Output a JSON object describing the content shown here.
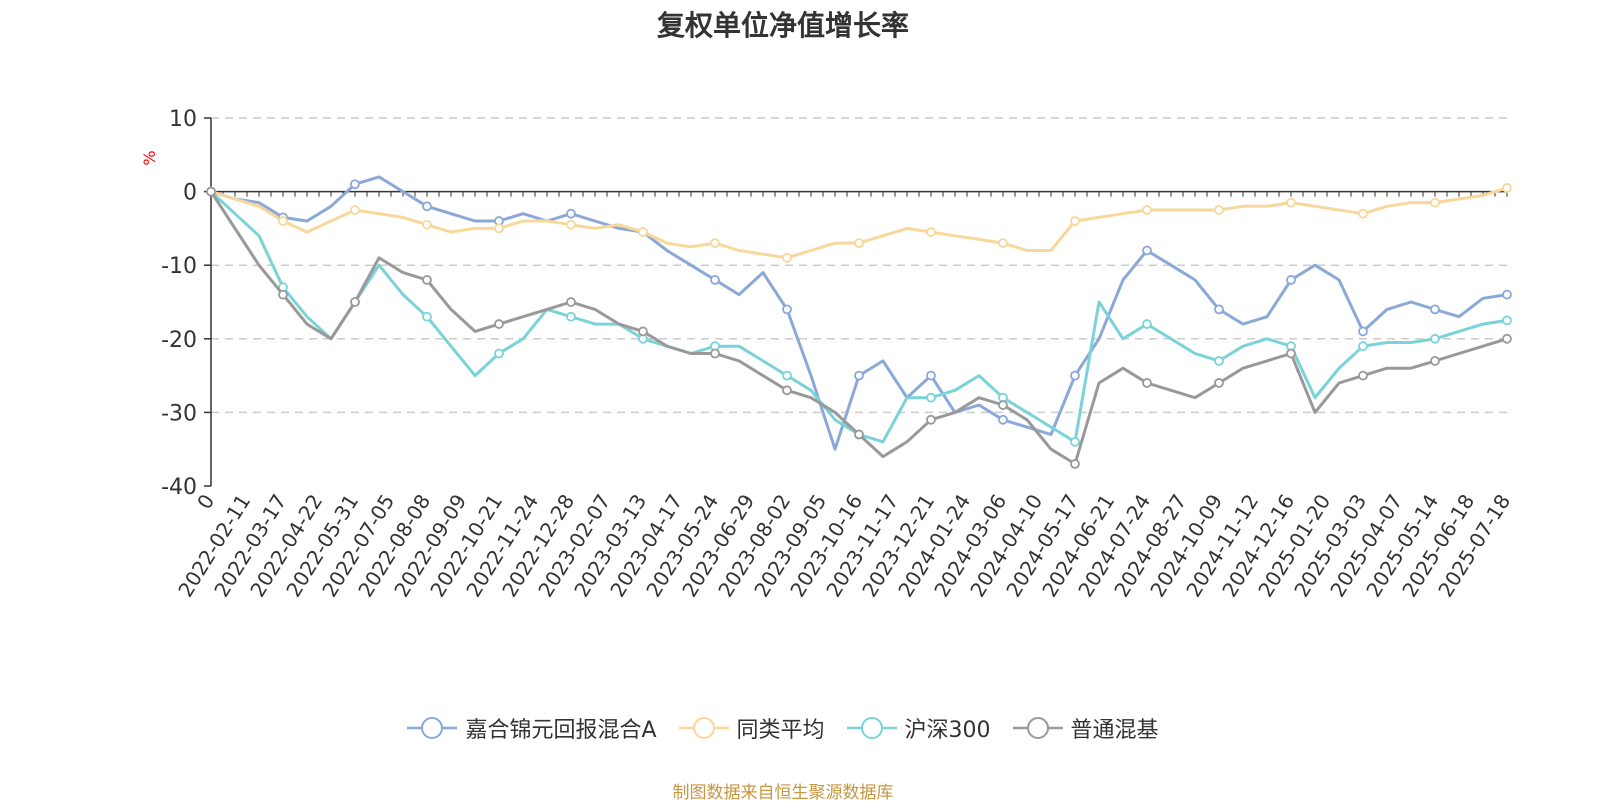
{
  "source_note": "制图数据来自恒生聚源数据库",
  "chart_data": {
    "type": "line",
    "title": "复权单位净值增长率",
    "ylabel": "%",
    "xlabel": "",
    "ylim": [
      -40,
      10
    ],
    "yticks": [
      10,
      0,
      -10,
      -20,
      -30,
      -40
    ],
    "grid": true,
    "legend_position": "bottom",
    "x_tick_labels": [
      "0",
      "2022-02-11",
      "2022-03-17",
      "2022-04-22",
      "2022-05-31",
      "2022-07-05",
      "2022-08-08",
      "2022-09-09",
      "2022-10-21",
      "2022-11-24",
      "2022-12-28",
      "2023-02-07",
      "2023-03-13",
      "2023-04-17",
      "2023-05-24",
      "2023-06-29",
      "2023-08-02",
      "2023-09-05",
      "2023-10-16",
      "2023-11-17",
      "2023-12-21",
      "2024-01-24",
      "2024-03-06",
      "2024-04-10",
      "2024-05-17",
      "2024-06-21",
      "2024-07-24",
      "2024-08-27",
      "2024-10-09",
      "2024-11-12",
      "2024-12-16",
      "2025-01-20",
      "2025-03-03",
      "2025-04-07",
      "2025-05-14",
      "2025-06-18",
      "2025-07-18"
    ],
    "series": [
      {
        "name": "嘉合锦元回报混合A",
        "color": "#8aa8d8",
        "values": [
          0,
          -1,
          -1.5,
          -3.5,
          -4,
          -2,
          1,
          2,
          0,
          -2,
          -3,
          -4,
          -4,
          -3,
          -4,
          -3,
          -4,
          -5,
          -5.5,
          -8,
          -10,
          -12,
          -14,
          -11,
          -16,
          -25,
          -35,
          -25,
          -23,
          -28,
          -25,
          -30,
          -29,
          -31,
          -32,
          -33,
          -25,
          -20,
          -12,
          -8,
          -10,
          -12,
          -16,
          -18,
          -17,
          -12,
          -10,
          -12,
          -19,
          -16,
          -15,
          -16,
          -17,
          -14.5,
          -14
        ]
      },
      {
        "name": "同类平均",
        "color": "#f8d89a",
        "values": [
          0,
          -1,
          -2,
          -4,
          -5.5,
          -4,
          -2.5,
          -3,
          -3.5,
          -4.5,
          -5.5,
          -5,
          -5,
          -4,
          -4,
          -4.5,
          -5,
          -4.5,
          -5.5,
          -7,
          -7.5,
          -7,
          -8,
          -8.5,
          -9,
          -8,
          -7,
          -7,
          -6,
          -5,
          -5.5,
          -6,
          -6.5,
          -7,
          -8,
          -8,
          -4,
          -3.5,
          -3,
          -2.5,
          -2.5,
          -2.5,
          -2.5,
          -2,
          -2,
          -1.5,
          -2,
          -2.5,
          -3,
          -2,
          -1.5,
          -1.5,
          -1,
          -0.5,
          0.5
        ]
      },
      {
        "name": "沪深300",
        "color": "#7ad3d8",
        "values": [
          0,
          -3,
          -6,
          -13,
          -17,
          -20,
          -15,
          -10,
          -14,
          -17,
          -21,
          -25,
          -22,
          -20,
          -16,
          -17,
          -18,
          -18,
          -20,
          -21,
          -22,
          -21,
          -21,
          -23,
          -25,
          -27,
          -31,
          -33,
          -34,
          -28,
          -28,
          -27,
          -25,
          -28,
          -30,
          -32,
          -34,
          -15,
          -20,
          -18,
          -20,
          -22,
          -23,
          -21,
          -20,
          -21,
          -28,
          -24,
          -21,
          -20.5,
          -20.5,
          -20,
          -19,
          -18,
          -17.5
        ]
      },
      {
        "name": "普通混基",
        "color": "#999999",
        "values": [
          0,
          -5,
          -10,
          -14,
          -18,
          -20,
          -15,
          -9,
          -11,
          -12,
          -16,
          -19,
          -18,
          -17,
          -16,
          -15,
          -16,
          -18,
          -19,
          -21,
          -22,
          -22,
          -23,
          -25,
          -27,
          -28,
          -30,
          -33,
          -36,
          -34,
          -31,
          -30,
          -28,
          -29,
          -31,
          -35,
          -37,
          -26,
          -24,
          -26,
          -27,
          -28,
          -26,
          -24,
          -23,
          -22,
          -30,
          -26,
          -25,
          -24,
          -24,
          -23,
          -22,
          -21,
          -20
        ]
      }
    ]
  }
}
